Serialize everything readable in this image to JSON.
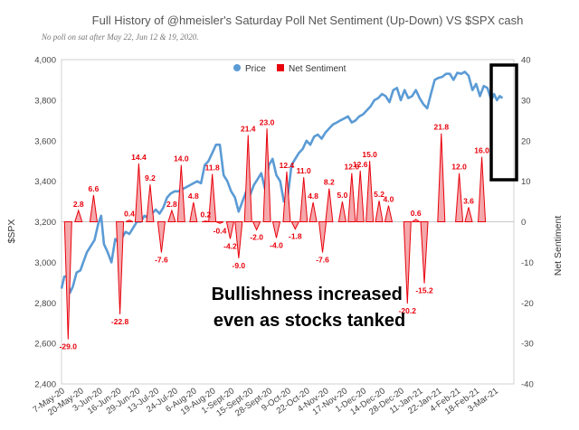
{
  "chart_data": {
    "type": "bar+line",
    "title": "Full History of @hmeisler's Saturday Poll Net Sentiment (Up-Down) VS $SPX  cash",
    "subtitle": "No poll on sat after May 22, Jun 12 & 19, 2020.",
    "ylabel": "$SPX",
    "y2label": "Net Sentiment",
    "ylim": [
      2400,
      4000
    ],
    "y2lim": [
      -40,
      40
    ],
    "yticks": [
      "2,400",
      "2,600",
      "2,800",
      "3,000",
      "3,200",
      "3,400",
      "3,600",
      "3,800",
      "4,000"
    ],
    "y2ticks": [
      "-40",
      "-30",
      "-20",
      "-10",
      "0",
      "10",
      "20",
      "30",
      "40"
    ],
    "xticks": [
      "7-May-20",
      "20-May-20",
      "3-Jun-20",
      "16-Jun-20",
      "29-Jun-20",
      "13-Jul-20",
      "24-Jul-20",
      "6-Aug-20",
      "19-Aug-20",
      "1-Sept-20",
      "15-Sept-20",
      "28-Sept-20",
      "9-Oct-20",
      "22-Oct-20",
      "4-Nov-20",
      "17-Nov-20",
      "1-Dec-20",
      "14-Dec-20",
      "28-Dec-20",
      "11-Jan-21",
      "22-Jan-21",
      "4-Feb-21",
      "18-Feb-21",
      "3-Mar-21"
    ],
    "legend": [
      {
        "name": "Price",
        "color": "#5b9bd5"
      },
      {
        "name": "Net Sentiment",
        "color": "#e8000b"
      }
    ],
    "sentiment": {
      "name": "Net Sentiment",
      "x": [
        0.7,
        1.8,
        3.4,
        4.2,
        6.2,
        7.2,
        8.2,
        9.4,
        10.6,
        11.7,
        12.7,
        14.0,
        15.3,
        16.0,
        16.8,
        17.9,
        18.8,
        19.8,
        20.7,
        21.8,
        22.8,
        23.9,
        24.8,
        25.7,
        26.7,
        27.7,
        28.4,
        29.8,
        30.8,
        31.7,
        32.7,
        33.7,
        34.7,
        35.6,
        36.7,
        37.6,
        38.5,
        39.4,
        40.3,
        42.2,
        43.2,
        44.6,
        46.1,
        47.1,
        47.7
      ],
      "values": [
        -29.0,
        2.8,
        6.6,
        0.0,
        -22.8,
        0.4,
        14.4,
        9.2,
        -7.6,
        2.8,
        14.0,
        4.8,
        0.2,
        11.8,
        -0.4,
        -4.2,
        -9.0,
        21.4,
        -2.0,
        23.0,
        -4.0,
        12.4,
        -1.8,
        11.0,
        4.8,
        -7.6,
        8.2,
        5.0,
        12.0,
        12.6,
        15.0,
        5.2,
        4.0,
        0.0,
        -20.2,
        0.6,
        -15.2,
        0.0,
        21.8,
        12.0,
        3.6,
        16.0,
        0.0,
        0.0,
        0.0
      ],
      "labels": [
        "-29.0",
        "2.8",
        "6.6",
        "",
        "-22.8",
        "0.4",
        "14.4",
        "9.2",
        "-7.6",
        "2.8",
        "14.0",
        "4.8",
        "0.2",
        "11.8",
        "-0.4",
        "-4.2",
        "-9.0",
        "21.4",
        "-2.0",
        "23.0",
        "-4.0",
        "12.4",
        "-1.8",
        "11.0",
        "4.8",
        "-7.6",
        "8.2",
        "5.0",
        "12.0",
        "12.6",
        "15.0",
        "5.2",
        "4.0",
        "",
        "-20.2",
        "0.6",
        "-15.2",
        "",
        "21.8",
        "12.0",
        "3.6",
        "16.0",
        "",
        "",
        ""
      ]
    },
    "price": {
      "name": "Price",
      "x": [
        0,
        0.3,
        0.6,
        0.9,
        1.2,
        1.6,
        2.0,
        2.3,
        2.7,
        3.1,
        3.5,
        3.9,
        4.2,
        4.5,
        4.9,
        5.3,
        5.7,
        6.0,
        6.4,
        6.8,
        7.2,
        7.6,
        8.0,
        8.4,
        8.8,
        9.2,
        9.6,
        10.0,
        10.4,
        10.8,
        11.2,
        11.6,
        12.0,
        12.4,
        12.8,
        13.2,
        13.6,
        14.0,
        14.4,
        14.8,
        15.2,
        15.6,
        16.0,
        16.4,
        16.8,
        17.2,
        17.6,
        18.0,
        18.4,
        18.8,
        19.2,
        19.6,
        20.0,
        20.4,
        20.8,
        21.2,
        21.6,
        22.0,
        22.4,
        22.8,
        23.2,
        23.6,
        24.0,
        24.4,
        24.8,
        25.2,
        25.6,
        26.0,
        26.4,
        26.8,
        27.2,
        27.6,
        28.0,
        28.4,
        28.8,
        29.2,
        29.6,
        30.0,
        30.4,
        30.8,
        31.2,
        31.6,
        32.0,
        32.4,
        32.8,
        33.2,
        33.6,
        34.0,
        34.4,
        34.8,
        35.2,
        35.6,
        36.0,
        36.4,
        36.8,
        37.2,
        37.6,
        38.0,
        38.4,
        38.8,
        39.2,
        39.6,
        40.0,
        40.4,
        40.8,
        41.2,
        41.6,
        42.0,
        42.4,
        42.8,
        43.2,
        43.6,
        44.0,
        44.4,
        44.8,
        45.2,
        45.6,
        45.9,
        46.2,
        46.5,
        46.8
      ],
      "values": [
        2870,
        2930,
        2930,
        2850,
        2880,
        2950,
        2960,
        3000,
        3050,
        3080,
        3110,
        3190,
        3230,
        3090,
        3050,
        3000,
        3115,
        3100,
        3120,
        3150,
        3140,
        3170,
        3200,
        3200,
        3230,
        3220,
        3240,
        3260,
        3240,
        3270,
        3320,
        3340,
        3350,
        3350,
        3360,
        3370,
        3380,
        3390,
        3400,
        3390,
        3480,
        3500,
        3540,
        3580,
        3580,
        3430,
        3400,
        3350,
        3320,
        3250,
        3300,
        3350,
        3330,
        3380,
        3410,
        3440,
        3360,
        3480,
        3510,
        3430,
        3400,
        3300,
        3320,
        3480,
        3510,
        3540,
        3560,
        3600,
        3580,
        3620,
        3630,
        3610,
        3640,
        3660,
        3680,
        3690,
        3700,
        3710,
        3720,
        3690,
        3700,
        3720,
        3730,
        3750,
        3770,
        3800,
        3810,
        3830,
        3820,
        3790,
        3850,
        3860,
        3800,
        3850,
        3810,
        3820,
        3850,
        3810,
        3780,
        3760,
        3830,
        3900,
        3910,
        3915,
        3930,
        3930,
        3900,
        3935,
        3930,
        3940,
        3920,
        3850,
        3880,
        3820,
        3870,
        3860,
        3800,
        3830,
        3800,
        3820,
        3810
      ]
    },
    "annotation": "Bullishness increased\neven as stocks tanked"
  }
}
